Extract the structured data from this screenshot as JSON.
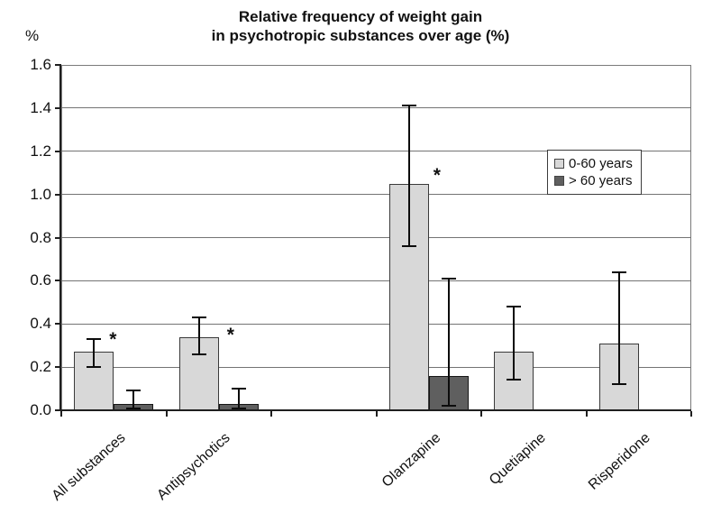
{
  "title": {
    "line1": "Relative frequency of weight gain",
    "line2": "in psychotropic substances over age (%)"
  },
  "chart_data": {
    "type": "bar",
    "title": "Relative frequency of weight gain in psychotropic substances over age (%)",
    "xlabel": "",
    "ylabel": "%",
    "ylim": [
      0,
      1.6
    ],
    "ytick_step": 0.2,
    "grid": true,
    "num_slots": 6,
    "slot_of_category": [
      0,
      1,
      3,
      4,
      5
    ],
    "categories": [
      "All substances",
      "Antipsychotics",
      "Olanzapine",
      "Quetiapine",
      "Risperidone"
    ],
    "series": [
      {
        "name": "0-60 years",
        "color": "#d8d8d8",
        "border": "#3a3a3a",
        "values": [
          0.27,
          0.34,
          1.05,
          0.27,
          0.31
        ],
        "err_low": [
          0.2,
          0.26,
          0.76,
          0.14,
          0.12
        ],
        "err_high": [
          0.33,
          0.43,
          1.41,
          0.48,
          0.64
        ]
      },
      {
        "name": "> 60 years",
        "color": "#5f5f5f",
        "border": "#161616",
        "values": [
          0.03,
          0.03,
          0.16,
          null,
          null
        ],
        "err_low": [
          0.01,
          0.01,
          0.02,
          null,
          null
        ],
        "err_high": [
          0.09,
          0.1,
          0.61,
          null,
          null
        ]
      }
    ],
    "annotations": [
      {
        "text": "*",
        "category": "All substances",
        "value": 0.34,
        "dx": 2
      },
      {
        "text": "*",
        "category": "Antipsychotics",
        "value": 0.36,
        "dx": 16
      },
      {
        "text": "*",
        "category": "Olanzapine",
        "value": 1.1,
        "dx": 12
      }
    ],
    "legend": {
      "position": "upper right",
      "entries": [
        "0-60 years",
        "> 60 years"
      ]
    }
  }
}
